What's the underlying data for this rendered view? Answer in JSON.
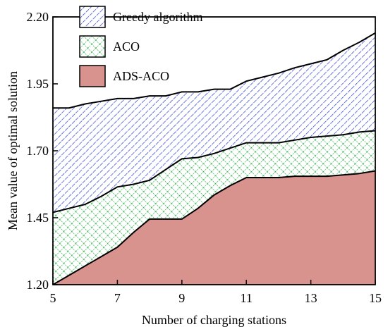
{
  "chart_data": {
    "type": "area",
    "xlabel": "Number of charging stations",
    "ylabel": "Mean value of optimal solution",
    "xlim": [
      5,
      15
    ],
    "ylim": [
      1.2,
      2.2
    ],
    "x_ticks": [
      5,
      7,
      9,
      11,
      13,
      15
    ],
    "y_ticks": [
      1.2,
      1.45,
      1.7,
      1.95,
      2.2
    ],
    "x_tick_labels": [
      "5",
      "7",
      "9",
      "11",
      "13",
      "15"
    ],
    "y_tick_labels": [
      "1.20",
      "1.45",
      "1.70",
      "1.95",
      "2.20"
    ],
    "grid": false,
    "legend_position": "top-left",
    "x": [
      5,
      5.5,
      6,
      6.5,
      7,
      7.5,
      8,
      8.5,
      9,
      9.5,
      10,
      10.5,
      11,
      11.5,
      12,
      12.5,
      13,
      13.5,
      14,
      14.5,
      15
    ],
    "series": [
      {
        "name": "Greedy algorithm",
        "color": "#2a3fd0",
        "pattern": "diagonal-hatch",
        "values": [
          1.86,
          1.86,
          1.875,
          1.885,
          1.895,
          1.895,
          1.905,
          1.905,
          1.92,
          1.92,
          1.93,
          1.93,
          1.96,
          1.975,
          1.99,
          2.01,
          2.025,
          2.04,
          2.075,
          2.105,
          2.14
        ]
      },
      {
        "name": "ACO",
        "color": "#1fa83c",
        "pattern": "cross-hatch",
        "values": [
          1.47,
          1.485,
          1.5,
          1.53,
          1.565,
          1.575,
          1.59,
          1.63,
          1.67,
          1.675,
          1.69,
          1.71,
          1.73,
          1.73,
          1.73,
          1.74,
          1.75,
          1.755,
          1.76,
          1.77,
          1.775
        ]
      },
      {
        "name": "ADS-ACO",
        "color": "#d9938e",
        "pattern": "solid",
        "values": [
          1.2,
          1.235,
          1.27,
          1.305,
          1.34,
          1.395,
          1.445,
          1.445,
          1.445,
          1.485,
          1.535,
          1.57,
          1.6,
          1.6,
          1.6,
          1.605,
          1.605,
          1.605,
          1.61,
          1.615,
          1.625
        ]
      }
    ]
  }
}
